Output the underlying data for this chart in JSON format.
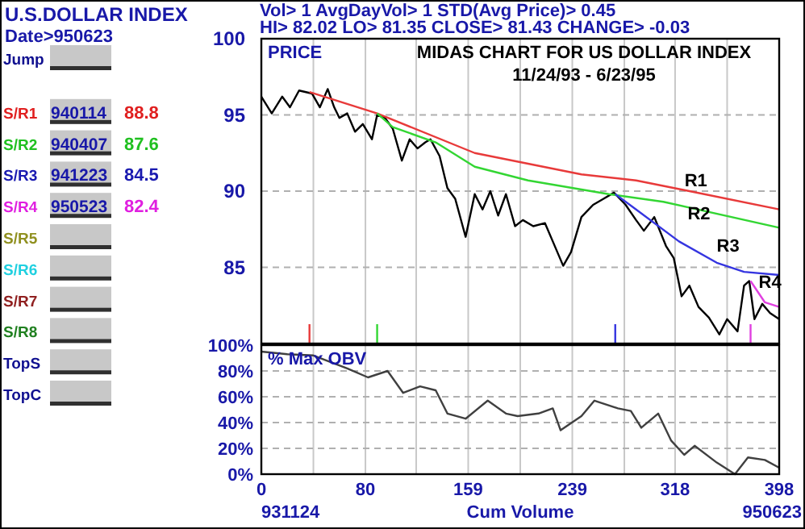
{
  "chart_data": [
    {
      "type": "other",
      "title": "U.S.DOLLAR INDEX",
      "subtitle": "Date>950623",
      "categories": [
        "Jump",
        "S/R1",
        "S/R2",
        "S/R3",
        "S/R4",
        "S/R5",
        "S/R6",
        "S/R7",
        "S/R8",
        "TopS",
        "TopC"
      ],
      "colors": [
        "#101090",
        "#e02020",
        "#20c020",
        "#1a1ab0",
        "#e020e0",
        "#909020",
        "#20d0e0",
        "#902020",
        "#208020",
        "#101090",
        "#101090"
      ],
      "annotations": [
        "940114",
        "88.8",
        "940407",
        "87.6",
        "941223",
        "84.5",
        "950523",
        "82.4"
      ]
    },
    {
      "type": "line",
      "title": "MIDAS CHART FOR US DOLLAR INDEX",
      "subtitle": "11/24/93 - 6/23/95",
      "ylabel": "PRICE",
      "annotations": [
        "Vol>  1 AvgDayVol>  1 STD(Avg Price)> 0.45",
        "HI> 82.02 LO> 81.35 CLOSE> 81.43 CHANGE> -0.03"
      ],
      "xlim": [
        0,
        398
      ],
      "xticks": [
        0,
        {
          "value": 40,
          "label": null
        },
        80,
        {
          "value": 119,
          "label": null
        },
        159,
        {
          "value": 199,
          "label": null
        },
        239,
        {
          "value": 279,
          "label": null
        },
        318,
        {
          "value": 358,
          "label": null
        },
        398
      ],
      "ylim": [
        80,
        100
      ],
      "yticks": [
        85,
        90,
        95,
        100
      ],
      "grid": true,
      "tick_labels": "y",
      "series": [
        {
          "color": "#000000",
          "x": [
            0,
            8,
            16,
            22,
            29,
            39,
            45,
            51,
            56,
            60,
            66,
            72,
            78,
            85,
            89,
            95,
            101,
            108,
            114,
            120,
            126,
            130,
            137,
            143,
            149,
            157,
            164,
            170,
            176,
            182,
            188,
            195,
            201,
            209,
            218,
            224,
            232,
            238,
            246,
            255,
            263,
            271,
            280,
            288,
            294,
            302,
            311,
            317,
            323,
            329,
            336,
            344,
            352,
            358,
            366,
            371,
            375,
            379,
            385,
            391,
            398
          ],
          "values": [
            96.2,
            95.1,
            96.2,
            95.5,
            96.6,
            96.4,
            95.5,
            96.7,
            95.5,
            94.8,
            95.1,
            93.9,
            94.4,
            93.4,
            95.0,
            94.8,
            94.1,
            92.0,
            93.4,
            92.8,
            93.2,
            93.4,
            92.3,
            90.2,
            89.5,
            87.0,
            89.8,
            88.8,
            90.0,
            88.4,
            89.8,
            87.7,
            88.1,
            87.7,
            87.9,
            86.7,
            85.1,
            86.0,
            88.3,
            89.1,
            89.5,
            89.9,
            89.1,
            88.1,
            87.4,
            88.3,
            86.4,
            85.6,
            83.1,
            83.8,
            82.4,
            81.7,
            80.6,
            81.6,
            80.8,
            83.8,
            84.1,
            81.6,
            82.6,
            82.0,
            81.6
          ]
        },
        {
          "name": "R1",
          "color": "#e83a3a",
          "x": [
            37,
            89,
            164,
            246,
            288,
            329,
            398
          ],
          "values": [
            96.5,
            95.1,
            92.5,
            91.1,
            90.7,
            90.0,
            88.8
          ]
        },
        {
          "name": "R2",
          "color": "#33d633",
          "x": [
            89,
            101,
            134,
            164,
            205,
            267,
            309,
            398
          ],
          "values": [
            95.1,
            94.2,
            93.2,
            91.6,
            90.7,
            89.8,
            89.3,
            87.6
          ]
        },
        {
          "name": "R3",
          "color": "#3535e0",
          "x": [
            272,
            288,
            321,
            350,
            371,
            398
          ],
          "values": [
            89.8,
            88.8,
            86.7,
            85.3,
            84.7,
            84.5
          ]
        },
        {
          "name": "R4",
          "color": "#e040e0",
          "x": [
            376,
            387,
            398
          ],
          "values": [
            84.1,
            82.7,
            82.4
          ]
        }
      ]
    },
    {
      "type": "line",
      "ylabel": "% Max OBV",
      "xlabel": "Cum Volume",
      "annotations": [
        "931124",
        "950623"
      ],
      "xlim": [
        0,
        398
      ],
      "xticks": [
        0,
        {
          "value": 40,
          "label": null
        },
        80,
        {
          "value": 119,
          "label": null
        },
        159,
        {
          "value": 199,
          "label": null
        },
        239,
        {
          "value": 279,
          "label": null
        },
        318,
        {
          "value": 358,
          "label": null
        },
        398
      ],
      "ylim": [
        0,
        100
      ],
      "yticks": [
        {
          "value": 0,
          "label": "0%"
        },
        {
          "value": 20,
          "label": "20%"
        },
        {
          "value": 40,
          "label": "40%"
        },
        {
          "value": 60,
          "label": "60%"
        },
        {
          "value": 80,
          "label": "80%"
        },
        {
          "value": 100,
          "label": "100%"
        }
      ],
      "grid": true,
      "series": [
        {
          "color": "#404040",
          "x": [
            0,
            20,
            40,
            66,
            82,
            97,
            109,
            122,
            134,
            143,
            157,
            174,
            188,
            197,
            213,
            224,
            230,
            246,
            256,
            274,
            284,
            292,
            305,
            315,
            325,
            333,
            350,
            364,
            374,
            387,
            398
          ],
          "values": [
            95,
            93,
            92,
            82,
            75,
            80,
            63,
            68,
            65,
            47,
            43,
            57,
            47,
            45,
            47,
            51,
            34,
            45,
            57,
            51,
            49,
            36,
            47,
            26,
            15,
            22,
            9,
            0,
            13,
            11,
            5
          ]
        }
      ]
    }
  ]
}
